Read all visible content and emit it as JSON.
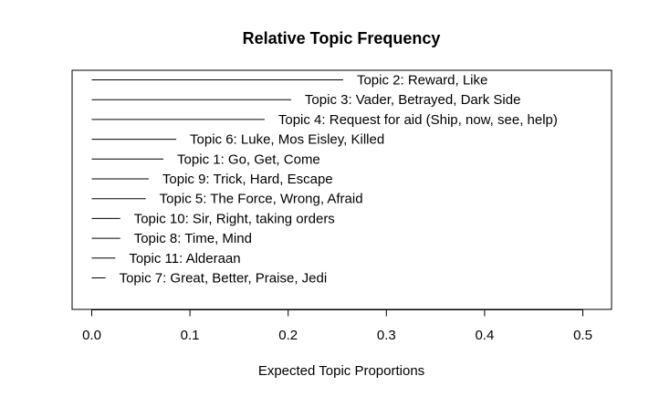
{
  "chart_data": {
    "type": "bar",
    "title": "Relative Topic Frequency",
    "xlabel": "Expected Topic Proportions",
    "ylabel": "",
    "xlim": [
      0,
      0.5
    ],
    "xticks": [
      "0.0",
      "0.1",
      "0.2",
      "0.3",
      "0.4",
      "0.5"
    ],
    "tick_values": [
      0,
      0.1,
      0.2,
      0.3,
      0.4,
      0.5
    ],
    "categories": [
      "Topic 2: Reward, Like",
      "Topic 3: Vader, Betrayed, Dark Side",
      "Topic 4: Request for aid (Ship, now, see, help)",
      "Topic 6: Luke, Mos Eisley, Killed",
      "Topic 1: Go, Get, Come",
      "Topic 9: Trick, Hard, Escape",
      "Topic 5: The Force, Wrong, Afraid",
      "Topic 10: Sir, Right, taking orders",
      "Topic 8: Time, Mind",
      "Topic 11: Alderaan",
      "Topic 7: Great, Better, Praise, Jedi"
    ],
    "values": [
      0.256,
      0.203,
      0.176,
      0.086,
      0.073,
      0.058,
      0.055,
      0.029,
      0.029,
      0.024,
      0.014
    ],
    "grid": false,
    "legend": "none"
  }
}
